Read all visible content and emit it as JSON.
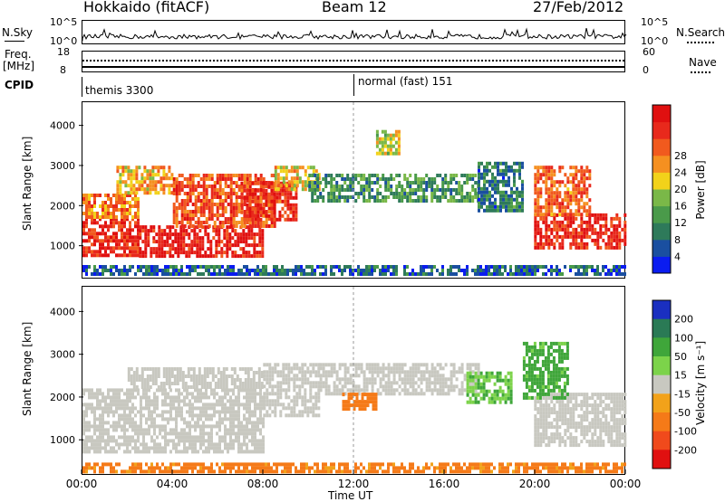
{
  "header": {
    "title": "Hokkaido (fitACF)",
    "beam": "Beam 12",
    "date": "27/Feb/2012"
  },
  "sky_panel": {
    "left_label": "N.Sky",
    "right_label": "N.Search",
    "left_ticks": [
      "10^5",
      "10^0"
    ],
    "right_ticks": [
      "10^5",
      "10^0"
    ]
  },
  "freq_panel": {
    "left_label": "Freq.",
    "left_unit": "[MHz]",
    "right_label": "Nave",
    "left_ticks": [
      "18",
      "8"
    ],
    "right_ticks": [
      "60",
      "0"
    ]
  },
  "cpid_panel": {
    "label": "CPID",
    "modes": [
      "themis 3300",
      "normal (fast) 151"
    ]
  },
  "chart_data": [
    {
      "type": "heatmap",
      "name": "Power",
      "ylabel": "Slant Range [km]",
      "colorbar_label": "Power [dB]",
      "ylim": [
        180,
        4600
      ],
      "yticks": [
        1000,
        2000,
        3000,
        4000
      ],
      "xlim": [
        0,
        24
      ],
      "colorbar": {
        "ticks": [
          "4",
          "8",
          "12",
          "16",
          "20",
          "24",
          "28"
        ],
        "colors": [
          "#0a1cf0",
          "#1a4fa0",
          "#2e7a5a",
          "#4a9a4a",
          "#7ab848",
          "#f2d21a",
          "#f59020",
          "#f15a1e",
          "#e8291c",
          "#e01010"
        ]
      },
      "regions": [
        {
          "t0": 0.0,
          "t1": 2.5,
          "r0": 700,
          "r1": 1700,
          "level": 28
        },
        {
          "t0": 0.0,
          "t1": 2.5,
          "r0": 1700,
          "r1": 2300,
          "level": 22
        },
        {
          "t0": 1.5,
          "t1": 4.0,
          "r0": 2300,
          "r1": 3000,
          "level": 20
        },
        {
          "t0": 2.5,
          "t1": 8.0,
          "r0": 700,
          "r1": 1500,
          "level": 29
        },
        {
          "t0": 4.0,
          "t1": 8.5,
          "r0": 1500,
          "r1": 2800,
          "level": 25
        },
        {
          "t0": 7.0,
          "t1": 9.5,
          "r0": 1600,
          "r1": 2600,
          "level": 27
        },
        {
          "t0": 8.5,
          "t1": 10.5,
          "r0": 2400,
          "r1": 3000,
          "level": 18
        },
        {
          "t0": 10.0,
          "t1": 17.5,
          "r0": 2100,
          "r1": 2800,
          "level": 10
        },
        {
          "t0": 13.0,
          "t1": 14.0,
          "r0": 3300,
          "r1": 3900,
          "level": 17
        },
        {
          "t0": 17.5,
          "t1": 19.5,
          "r0": 1900,
          "r1": 3100,
          "level": 8
        },
        {
          "t0": 20.0,
          "t1": 24.0,
          "r0": 900,
          "r1": 1800,
          "level": 28
        },
        {
          "t0": 20.0,
          "t1": 22.5,
          "r0": 1800,
          "r1": 3000,
          "level": 24
        },
        {
          "t0": 0.0,
          "t1": 24.0,
          "r0": 250,
          "r1": 500,
          "level": 6
        }
      ]
    },
    {
      "type": "heatmap",
      "name": "Velocity",
      "ylabel": "Slant Range [km]",
      "colorbar_label": "Velocity [m s⁻¹]",
      "ylim": [
        180,
        4600
      ],
      "yticks": [
        1000,
        2000,
        3000,
        4000
      ],
      "xlim": [
        0,
        24
      ],
      "xticks": [
        "00:00",
        "04:00",
        "08:00",
        "12:00",
        "16:00",
        "20:00",
        "00:00"
      ],
      "xlabel": "Time UT",
      "colorbar": {
        "ticks": [
          "200",
          "100",
          "50",
          "15",
          "-15",
          "-50",
          "-100",
          "-200"
        ],
        "colors": [
          "#1a2fc0",
          "#2a7a55",
          "#3fa63a",
          "#7cd34a",
          "#c8c8c0",
          "#f2a21a",
          "#f57a18",
          "#f04a1c",
          "#e01010"
        ]
      },
      "regions": [
        {
          "t0": 0.0,
          "t1": 8.0,
          "r0": 700,
          "r1": 2200,
          "level": 0
        },
        {
          "t0": 2.0,
          "t1": 8.0,
          "r0": 2200,
          "r1": 2700,
          "level": 0
        },
        {
          "t0": 8.0,
          "t1": 10.5,
          "r0": 1600,
          "r1": 2800,
          "level": 0
        },
        {
          "t0": 10.5,
          "t1": 17.5,
          "r0": 2100,
          "r1": 2800,
          "level": 0
        },
        {
          "t0": 11.5,
          "t1": 13.0,
          "r0": 1700,
          "r1": 2100,
          "level": -60
        },
        {
          "t0": 20.0,
          "t1": 24.0,
          "r0": 900,
          "r1": 2100,
          "level": 0
        },
        {
          "t0": 17.0,
          "t1": 19.0,
          "r0": 1900,
          "r1": 2600,
          "level": 30
        },
        {
          "t0": 19.5,
          "t1": 21.5,
          "r0": 2000,
          "r1": 3300,
          "level": 40
        },
        {
          "t0": 0.0,
          "t1": 24.0,
          "r0": 200,
          "r1": 450,
          "level": -40
        }
      ]
    }
  ]
}
